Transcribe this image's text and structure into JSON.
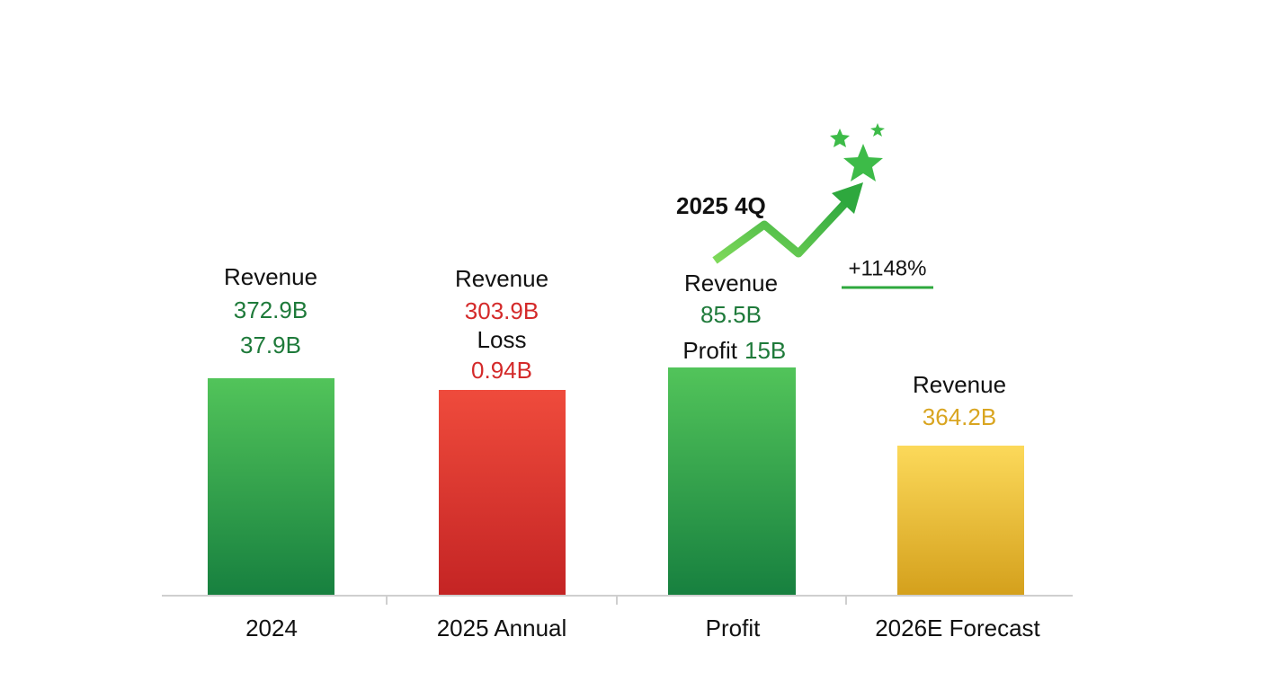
{
  "columns": [
    {
      "category": "2024",
      "lines": [
        {
          "text": "Revenue"
        },
        {
          "text": "372.9B"
        },
        {
          "text": "37.9B"
        }
      ]
    },
    {
      "category": "2025 Annual",
      "lines": [
        {
          "text": "Revenue"
        },
        {
          "text": "303.9B"
        },
        {
          "text": "Loss"
        },
        {
          "text": "0.94B"
        }
      ]
    },
    {
      "category": "Profit",
      "lines": [
        {
          "text": "Revenue"
        },
        {
          "text": "85.5B"
        },
        {
          "text": "Profit"
        },
        {
          "text": "15B"
        }
      ]
    },
    {
      "category": "2026E Forecast",
      "lines": [
        {
          "text": "Revenue"
        },
        {
          "text": "364.2B"
        }
      ]
    }
  ],
  "annotation": {
    "period": "2025 4Q",
    "growth": "+1148%"
  }
}
